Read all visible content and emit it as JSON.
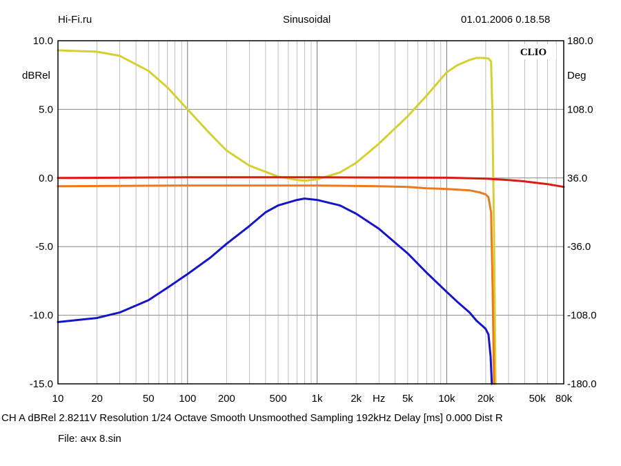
{
  "header": {
    "left": "Hi-Fi.ru",
    "center": "Sinusoidal",
    "right": "01.01.2006 0.18.58"
  },
  "footer": {
    "line1": "CH A   dBRel 2.8211V   Resolution 1/24 Octave   Smooth Unsmoothed   Sampling 192kHz   Delay [ms] 0.000   Dist R",
    "line2": "File: ачх 8.sin"
  },
  "chart_data": {
    "type": "line",
    "logo": "CLIO",
    "x_axis": {
      "scale": "log",
      "range": [
        10,
        80000
      ],
      "ticks": [
        10,
        20,
        50,
        100,
        200,
        500,
        1000,
        2000,
        5000,
        10000,
        20000,
        50000,
        80000
      ],
      "tick_labels": [
        "10",
        "20",
        "50",
        "100",
        "200",
        "500",
        "1k",
        "2k",
        "5k",
        "10k",
        "20k",
        "50k",
        "80k"
      ],
      "unit_label": "Hz",
      "unit_label_at": 3000
    },
    "y_left": {
      "label": "dBRel",
      "range": [
        -15,
        10
      ],
      "ticks": [
        10,
        5,
        0,
        -5,
        -10,
        -15
      ],
      "tick_labels": [
        "10.0",
        "5.0",
        "0.0",
        "-5.0",
        "-10.0",
        "-15.0"
      ]
    },
    "y_right": {
      "label": "Deg",
      "range": [
        -180,
        180
      ],
      "ticks": [
        180,
        108,
        36,
        -36,
        -108,
        -180
      ],
      "tick_labels": [
        "180.0",
        "108.0",
        "36.0",
        "-36.0",
        "-108.0",
        "-180.0"
      ]
    },
    "grid": true,
    "series": [
      {
        "axis": "left",
        "color": "#d4d030",
        "points": [
          [
            10,
            9.3
          ],
          [
            20,
            9.2
          ],
          [
            30,
            8.9
          ],
          [
            50,
            7.8
          ],
          [
            70,
            6.6
          ],
          [
            100,
            5.0
          ],
          [
            150,
            3.2
          ],
          [
            200,
            2.0
          ],
          [
            300,
            0.9
          ],
          [
            500,
            0.1
          ],
          [
            700,
            -0.15
          ],
          [
            800,
            -0.2
          ],
          [
            1000,
            -0.1
          ],
          [
            1500,
            0.4
          ],
          [
            2000,
            1.1
          ],
          [
            3000,
            2.5
          ],
          [
            5000,
            4.5
          ],
          [
            7000,
            6.0
          ],
          [
            10000,
            7.7
          ],
          [
            12000,
            8.2
          ],
          [
            15000,
            8.6
          ],
          [
            17000,
            8.75
          ],
          [
            19000,
            8.75
          ],
          [
            21000,
            8.7
          ],
          [
            22000,
            8.5
          ],
          [
            22500,
            5.0
          ],
          [
            23200,
            -4.0
          ],
          [
            23800,
            -15.0
          ]
        ]
      },
      {
        "axis": "left",
        "color": "#dd1a10",
        "points": [
          [
            10,
            0.0
          ],
          [
            100,
            0.05
          ],
          [
            1000,
            0.05
          ],
          [
            10000,
            0.02
          ],
          [
            20000,
            -0.05
          ],
          [
            30000,
            -0.15
          ],
          [
            40000,
            -0.25
          ],
          [
            60000,
            -0.45
          ],
          [
            80000,
            -0.65
          ]
        ]
      },
      {
        "axis": "left",
        "color": "#f07818",
        "points": [
          [
            10,
            -0.6
          ],
          [
            30,
            -0.58
          ],
          [
            100,
            -0.55
          ],
          [
            500,
            -0.55
          ],
          [
            1000,
            -0.55
          ],
          [
            3000,
            -0.6
          ],
          [
            5000,
            -0.65
          ],
          [
            7000,
            -0.75
          ],
          [
            10000,
            -0.8
          ],
          [
            15000,
            -0.9
          ],
          [
            18000,
            -1.05
          ],
          [
            20000,
            -1.2
          ],
          [
            21000,
            -1.4
          ],
          [
            22000,
            -2.5
          ],
          [
            22600,
            -8.0
          ],
          [
            23200,
            -15.0
          ]
        ]
      },
      {
        "axis": "left",
        "color": "#1414c8",
        "points": [
          [
            10,
            -10.5
          ],
          [
            20,
            -10.2
          ],
          [
            30,
            -9.8
          ],
          [
            50,
            -8.9
          ],
          [
            70,
            -8.0
          ],
          [
            100,
            -7.0
          ],
          [
            150,
            -5.8
          ],
          [
            200,
            -4.8
          ],
          [
            300,
            -3.5
          ],
          [
            400,
            -2.5
          ],
          [
            500,
            -2.0
          ],
          [
            700,
            -1.6
          ],
          [
            800,
            -1.5
          ],
          [
            1000,
            -1.6
          ],
          [
            1500,
            -2.0
          ],
          [
            2000,
            -2.6
          ],
          [
            3000,
            -3.7
          ],
          [
            5000,
            -5.5
          ],
          [
            7000,
            -6.9
          ],
          [
            10000,
            -8.3
          ],
          [
            12000,
            -9.0
          ],
          [
            15000,
            -9.8
          ],
          [
            17000,
            -10.4
          ],
          [
            19000,
            -10.8
          ],
          [
            20000,
            -11.0
          ],
          [
            21000,
            -11.4
          ],
          [
            21800,
            -13.0
          ],
          [
            22300,
            -15.0
          ]
        ]
      }
    ]
  }
}
